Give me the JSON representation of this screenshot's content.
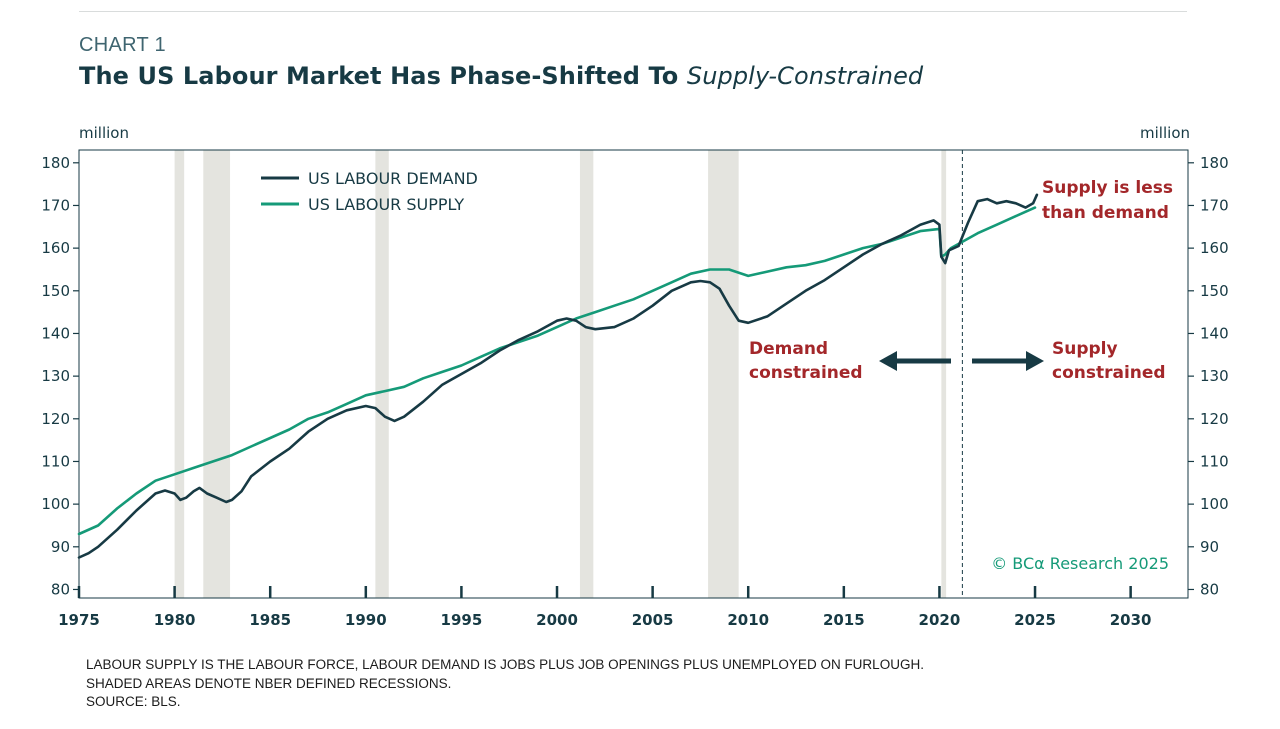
{
  "header": {
    "chart_number": "CHART 1",
    "title_main": "The US Labour Market Has Phase-Shifted To ",
    "title_emph": "Supply-Constrained"
  },
  "colors": {
    "demand": "#173a44",
    "supply": "#159a78",
    "annotation": "#a3272a",
    "recession": "#e4e4df",
    "text": "#173a44"
  },
  "chart_data": {
    "type": "line",
    "title": "The US Labour Market Has Phase-Shifted To Supply-Constrained",
    "y_unit_left": "million",
    "y_unit_right": "million",
    "xlim": [
      1975,
      2033
    ],
    "ylim": [
      78,
      183
    ],
    "x_ticks": [
      1975,
      1980,
      1985,
      1990,
      1995,
      2000,
      2005,
      2010,
      2015,
      2020,
      2025,
      2030
    ],
    "y_ticks": [
      80,
      90,
      100,
      110,
      120,
      130,
      140,
      150,
      160,
      170,
      180
    ],
    "recessions": [
      [
        1980.0,
        1980.5
      ],
      [
        1981.5,
        1982.9
      ],
      [
        1990.5,
        1991.2
      ],
      [
        2001.2,
        2001.9
      ],
      [
        2007.9,
        2009.5
      ],
      [
        2020.1,
        2020.35
      ]
    ],
    "divider_x": 2021.2,
    "legend": [
      {
        "name": "US LABOUR DEMAND",
        "color": "#173a44"
      },
      {
        "name": "US LABOUR SUPPLY",
        "color": "#159a78"
      }
    ],
    "series": [
      {
        "name": "US LABOUR DEMAND",
        "color": "#173a44",
        "x": [
          1975.0,
          1975.5,
          1976.0,
          1977.0,
          1978.0,
          1979.0,
          1979.5,
          1980.0,
          1980.3,
          1980.6,
          1981.0,
          1981.3,
          1981.7,
          1982.2,
          1982.7,
          1983.0,
          1983.5,
          1984.0,
          1985.0,
          1986.0,
          1987.0,
          1988.0,
          1989.0,
          1990.0,
          1990.5,
          1991.0,
          1991.5,
          1992.0,
          1993.0,
          1994.0,
          1995.0,
          1996.0,
          1997.0,
          1998.0,
          1999.0,
          2000.0,
          2000.5,
          2001.0,
          2001.5,
          2002.0,
          2003.0,
          2004.0,
          2005.0,
          2006.0,
          2007.0,
          2007.5,
          2008.0,
          2008.5,
          2009.0,
          2009.5,
          2010.0,
          2011.0,
          2012.0,
          2013.0,
          2014.0,
          2015.0,
          2016.0,
          2017.0,
          2018.0,
          2019.0,
          2019.7,
          2020.0,
          2020.1,
          2020.3,
          2020.5,
          2021.0,
          2021.5,
          2022.0,
          2022.5,
          2023.0,
          2023.5,
          2024.0,
          2024.5,
          2024.9,
          2025.1
        ],
        "values": [
          87.5,
          88.5,
          90,
          94,
          98.5,
          102.5,
          103.2,
          102.5,
          101,
          101.5,
          103,
          103.8,
          102.5,
          101.5,
          100.5,
          101,
          103,
          106.5,
          110,
          113,
          117,
          120,
          122,
          123,
          122.5,
          120.5,
          119.5,
          120.5,
          124,
          128,
          130.5,
          133,
          136,
          138.5,
          140.5,
          143,
          143.5,
          143,
          141.5,
          141,
          141.5,
          143.5,
          146.5,
          150,
          152,
          152.3,
          152,
          150.5,
          146.5,
          143,
          142.5,
          144,
          147,
          150,
          152.5,
          155.5,
          158.5,
          161,
          163,
          165.5,
          166.5,
          165.5,
          158,
          156.5,
          159.5,
          160.5,
          166,
          171,
          171.5,
          170.5,
          171,
          170.5,
          169.5,
          170.5,
          172.5
        ]
      },
      {
        "name": "US LABOUR SUPPLY",
        "color": "#159a78",
        "x": [
          1975.0,
          1976.0,
          1977.0,
          1978.0,
          1979.0,
          1980.0,
          1981.0,
          1982.0,
          1983.0,
          1984.0,
          1985.0,
          1986.0,
          1987.0,
          1988.0,
          1989.0,
          1990.0,
          1991.0,
          1992.0,
          1993.0,
          1994.0,
          1995.0,
          1996.0,
          1997.0,
          1998.0,
          1999.0,
          2000.0,
          2001.0,
          2002.0,
          2003.0,
          2004.0,
          2005.0,
          2006.0,
          2007.0,
          2008.0,
          2009.0,
          2010.0,
          2011.0,
          2012.0,
          2013.0,
          2014.0,
          2015.0,
          2016.0,
          2017.0,
          2018.0,
          2019.0,
          2020.0,
          2020.1,
          2020.3,
          2020.6,
          2021.0,
          2022.0,
          2023.0,
          2024.0,
          2025.0
        ],
        "values": [
          93,
          95,
          99,
          102.5,
          105.5,
          107,
          108.5,
          110,
          111.5,
          113.5,
          115.5,
          117.5,
          120,
          121.5,
          123.5,
          125.5,
          126.5,
          127.5,
          129.5,
          131,
          132.5,
          134.5,
          136.5,
          138,
          139.5,
          141.5,
          143.5,
          145,
          146.5,
          148,
          150,
          152,
          154,
          155,
          155,
          153.5,
          154.5,
          155.5,
          156,
          157,
          158.5,
          160,
          161,
          162.5,
          164,
          164.5,
          158,
          158.5,
          160,
          161,
          163.5,
          165.5,
          167.5,
          169.5
        ]
      }
    ],
    "annotations": {
      "supply_less_line1": "Supply is less",
      "supply_less_line2": "than demand",
      "demand_constrained_line1": "Demand",
      "demand_constrained_line2": "constrained",
      "supply_constrained_line1": "Supply",
      "supply_constrained_line2": "constrained"
    }
  },
  "watermark": "© BCα Research 2025",
  "footnotes": {
    "line1": "LABOUR SUPPLY IS THE LABOUR FORCE, LABOUR DEMAND IS JOBS PLUS JOB OPENINGS PLUS UNEMPLOYED ON FURLOUGH.",
    "line2": "SHADED AREAS DENOTE NBER DEFINED RECESSIONS.",
    "line3": "SOURCE: BLS."
  }
}
